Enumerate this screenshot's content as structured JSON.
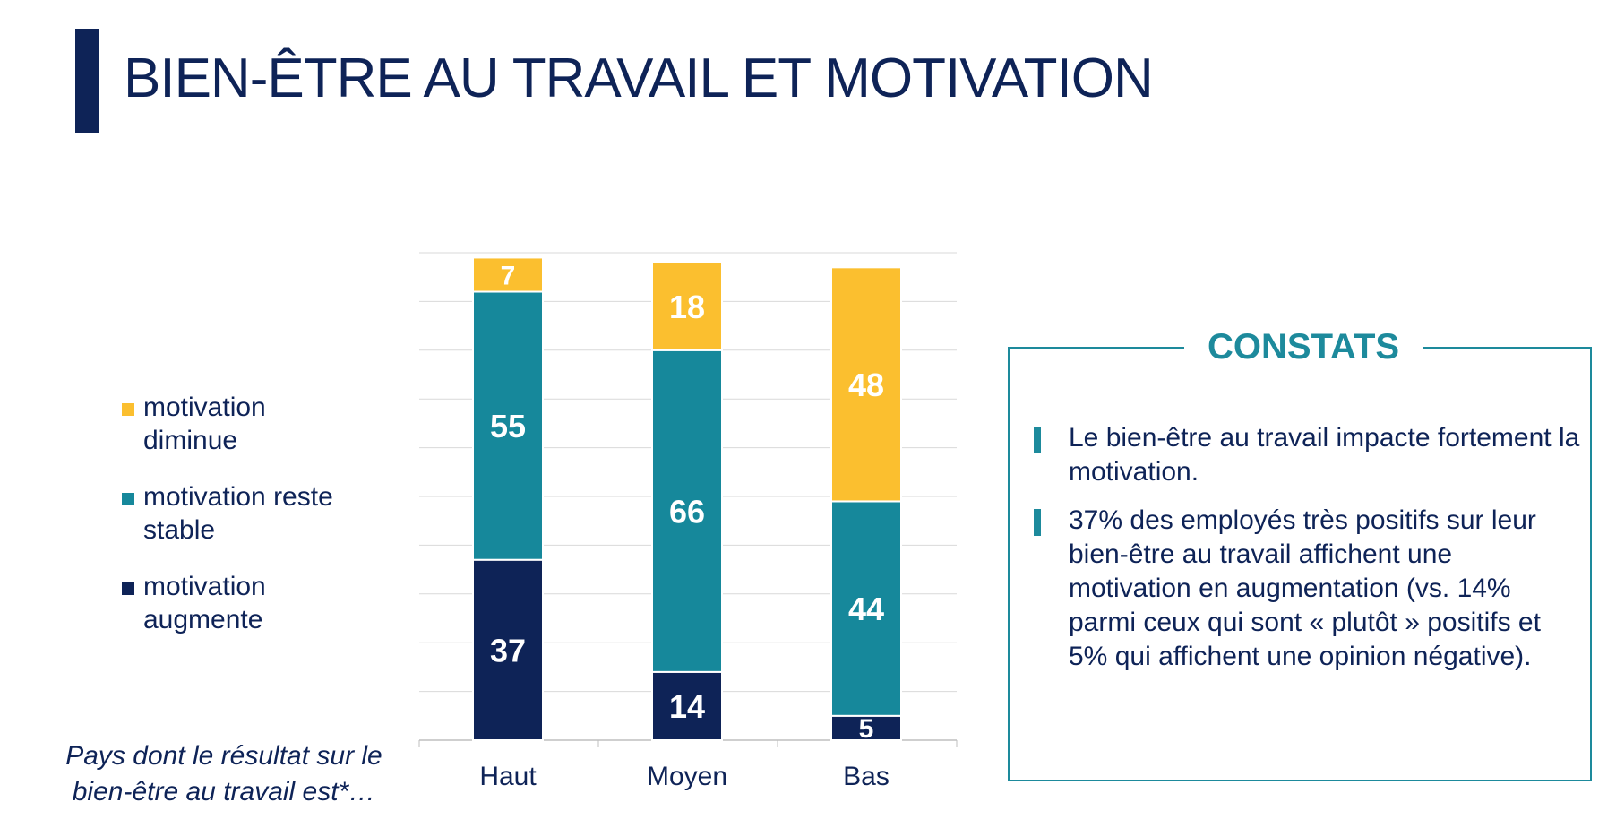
{
  "page": {
    "title": "BIEN-ÊTRE AU TRAVAIL ET MOTIVATION"
  },
  "legend": [
    {
      "key": "diminue",
      "label": "motivation diminue",
      "color": "#fbbf2f"
    },
    {
      "key": "stable",
      "label": "motivation reste stable",
      "color": "#16889b"
    },
    {
      "key": "augmente",
      "label": "motivation augmente",
      "color": "#0e2357"
    }
  ],
  "subtitle": "Pays dont le résultat sur le bien-être au travail est*…",
  "chart_data": {
    "type": "bar",
    "stacked": true,
    "categories": [
      "Haut",
      "Moyen",
      "Bas"
    ],
    "series": [
      {
        "name": "motivation augmente",
        "color": "#0e2357",
        "values": [
          37,
          14,
          5
        ]
      },
      {
        "name": "motivation reste stable",
        "color": "#16889b",
        "values": [
          55,
          66,
          44
        ]
      },
      {
        "name": "motivation diminue",
        "color": "#fbbf2f",
        "values": [
          7,
          18,
          48
        ]
      }
    ],
    "ylim": [
      0,
      100
    ],
    "grid": true,
    "legend_position": "left"
  },
  "panel": {
    "title": "CONSTATS",
    "bullets": [
      "Le bien-être au travail impacte fortement la motivation.",
      "37% des employés très positifs sur leur bien-être au travail affichent une motivation en augmentation (vs. 14% parmi ceux qui sont « plutôt » positifs et 5% qui affichent une opinion négative)."
    ]
  }
}
